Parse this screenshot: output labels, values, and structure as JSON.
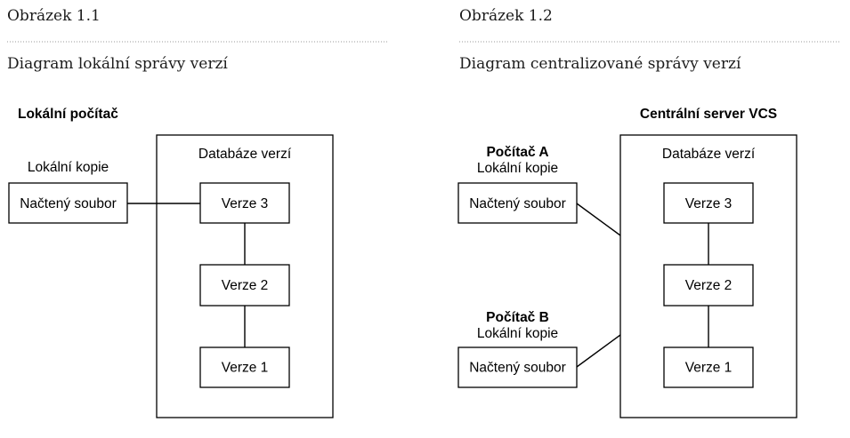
{
  "figure_1": {
    "label": "Obrázek 1.1",
    "title": "Diagram lokální správy verzí",
    "machine_label": "Lokální počítač",
    "database_label": "Databáze verzí",
    "local_copy_label": "Lokální kopie",
    "file_label": "Načtený soubor",
    "versions": [
      "Verze 3",
      "Verze 2",
      "Verze 1"
    ]
  },
  "figure_2": {
    "label": "Obrázek 1.2",
    "title": "Diagram centralizované správy verzí",
    "server_label": "Centrální server VCS",
    "database_label": "Databáze verzí",
    "versions": [
      "Verze 3",
      "Verze 2",
      "Verze 1"
    ],
    "clients": [
      {
        "name": "Počítač A",
        "local_copy_label": "Lokální kopie",
        "file_label": "Načtený soubor"
      },
      {
        "name": "Počítač B",
        "local_copy_label": "Lokální kopie",
        "file_label": "Načtený soubor"
      }
    ]
  },
  "colors": {
    "ink": "#000000",
    "caption": "#1c1c1c",
    "divider": "#9a9a9a",
    "background": "#ffffff"
  }
}
